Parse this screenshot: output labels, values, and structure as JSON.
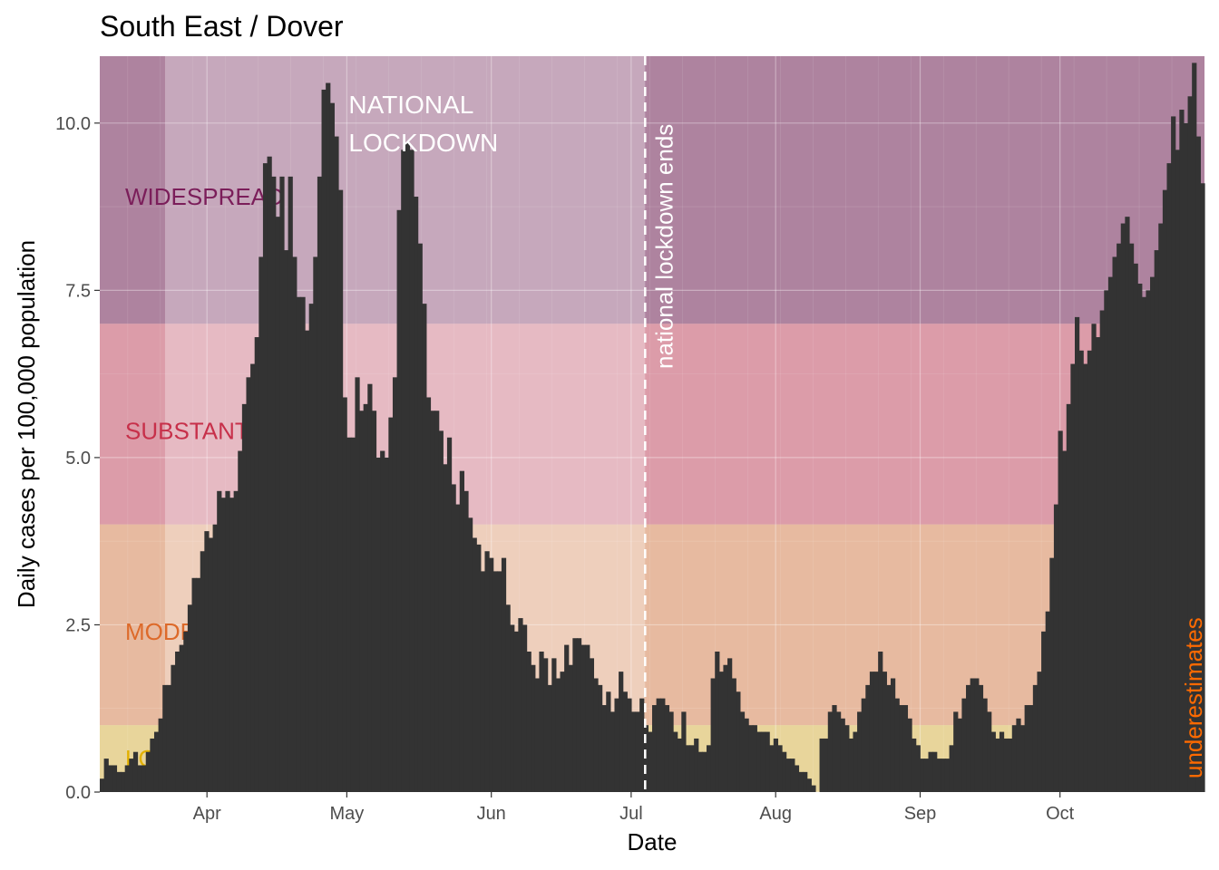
{
  "chart_data": {
    "type": "bar",
    "title": "South East / Dover",
    "xlabel": "Date",
    "ylabel": "Daily cases per 100,000 population",
    "ylim": [
      0,
      11
    ],
    "y_ticks": [
      "0.0",
      "2.5",
      "5.0",
      "7.5",
      "10.0"
    ],
    "x_ticks": [
      "Apr",
      "May",
      "Jun",
      "Jul",
      "Aug",
      "Sep",
      "Oct"
    ],
    "x_start_date": "2020-03-09",
    "x_end_date": "2020-10-31",
    "grid": true,
    "bands": [
      {
        "label": "WIDESPREAD",
        "from": 7,
        "to": 11,
        "color": "#7b2d61",
        "label_color": "#7b1e5a",
        "label_y": 8.9
      },
      {
        "label": "SUBSTANTIAL",
        "from": 4,
        "to": 7,
        "color": "#cf5b73",
        "label_color": "#c7304a",
        "label_y": 5.4
      },
      {
        "label": "MODERATE",
        "from": 1,
        "to": 4,
        "color": "#e39163",
        "label_color": "#dd6a2a",
        "label_y": 2.4
      },
      {
        "label": "LOW",
        "from": 0,
        "to": 1,
        "color": "#e6c35a",
        "label_color": "#e2b000",
        "label_y": 0.5
      }
    ],
    "annotations": {
      "lockdown_label": [
        "NATIONAL",
        "LOCKDOWN"
      ],
      "lockdown_start": "2020-03-23",
      "lockdown_end": "2020-07-04",
      "lockdown_end_label": "national lockdown ends",
      "underestimate_label": "underestimates",
      "underestimate_color": "#ff6a00"
    },
    "bar_color": "#333333",
    "values": [
      0.2,
      0.5,
      0.4,
      0.4,
      0.3,
      0.3,
      0.4,
      0.5,
      0.6,
      0.4,
      0.4,
      0.6,
      0.8,
      0.9,
      1.1,
      1.6,
      1.6,
      1.9,
      2.1,
      2.2,
      2.4,
      2.8,
      3.2,
      3.2,
      3.6,
      3.9,
      3.8,
      4.0,
      4.5,
      4.4,
      4.5,
      4.4,
      4.5,
      5.1,
      5.8,
      6.2,
      6.4,
      6.8,
      8.0,
      9.4,
      9.5,
      9.2,
      8.6,
      9.2,
      8.1,
      9.2,
      8.0,
      7.4,
      7.4,
      6.9,
      7.3,
      8.0,
      9.2,
      10.5,
      10.6,
      10.3,
      9.8,
      9.0,
      5.9,
      5.3,
      5.3,
      6.2,
      5.7,
      5.8,
      6.1,
      5.7,
      5.0,
      5.1,
      5.0,
      5.6,
      6.2,
      8.7,
      9.6,
      9.7,
      9.6,
      8.9,
      8.2,
      7.3,
      5.9,
      5.7,
      5.7,
      5.4,
      4.9,
      5.3,
      4.6,
      4.3,
      4.8,
      4.5,
      4.1,
      3.8,
      3.7,
      3.3,
      3.6,
      3.5,
      3.3,
      3.3,
      3.5,
      2.8,
      2.5,
      2.4,
      2.6,
      2.5,
      2.1,
      1.9,
      1.7,
      2.1,
      2.0,
      1.6,
      2.0,
      1.7,
      1.8,
      2.2,
      1.9,
      2.3,
      2.3,
      2.2,
      2.2,
      2.0,
      1.7,
      1.6,
      1.3,
      1.5,
      1.2,
      1.4,
      1.8,
      1.5,
      1.4,
      1.2,
      1.2,
      1.4,
      1.0,
      0.9,
      1.3,
      1.4,
      1.4,
      1.3,
      1.2,
      0.9,
      0.8,
      1.2,
      0.7,
      0.7,
      0.8,
      0.6,
      0.6,
      0.7,
      1.7,
      2.1,
      1.8,
      1.9,
      2.0,
      1.7,
      1.5,
      1.2,
      1.1,
      1.0,
      1.0,
      0.9,
      0.9,
      0.9,
      0.7,
      0.8,
      0.7,
      0.6,
      0.5,
      0.5,
      0.4,
      0.3,
      0.3,
      0.2,
      0.1,
      0.0,
      0.8,
      0.8,
      1.2,
      1.3,
      1.2,
      1.1,
      1.0,
      0.8,
      0.9,
      1.2,
      1.4,
      1.6,
      1.8,
      1.8,
      2.1,
      1.8,
      1.6,
      1.7,
      1.4,
      1.3,
      1.3,
      1.1,
      0.8,
      0.7,
      0.5,
      0.5,
      0.6,
      0.6,
      0.5,
      0.5,
      0.5,
      0.7,
      1.2,
      1.1,
      1.4,
      1.6,
      1.7,
      1.7,
      1.6,
      1.4,
      1.2,
      0.9,
      0.8,
      0.9,
      0.8,
      0.8,
      1.0,
      1.1,
      1.0,
      1.3,
      1.3,
      1.6,
      1.8,
      2.4,
      2.7,
      3.5,
      4.3,
      5.4,
      5.1,
      5.8,
      6.4,
      7.1,
      6.6,
      6.4,
      6.6,
      7.0,
      6.8,
      7.2,
      7.5,
      7.7,
      8.0,
      8.2,
      8.5,
      8.6,
      8.2,
      7.9,
      7.6,
      7.4,
      7.5,
      7.7,
      8.1,
      8.5,
      9.0,
      9.4,
      10.1,
      9.6,
      10.2,
      10.0,
      10.4,
      10.9,
      9.8,
      9.1
    ],
    "estimated_tail_start": 264
  }
}
